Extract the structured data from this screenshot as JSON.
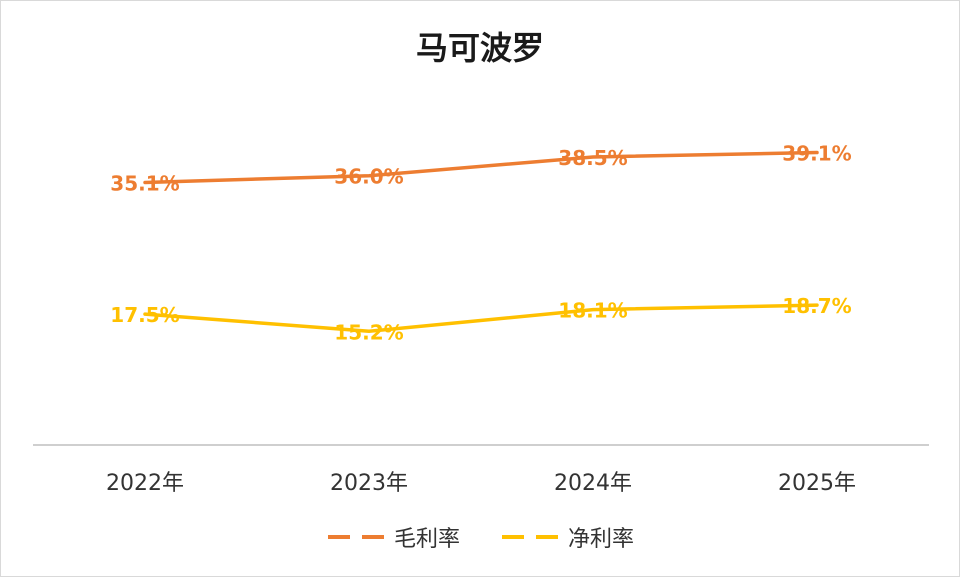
{
  "chart_data": {
    "type": "line",
    "title": "马可波罗",
    "categories": [
      "2022年",
      "2023年",
      "2024年",
      "2025年"
    ],
    "series": [
      {
        "name": "毛利率",
        "values": [
          35.1,
          36.0,
          38.5,
          39.1
        ],
        "labels": [
          "35.1%",
          "36.0%",
          "38.5%",
          "39.1%"
        ],
        "color": "#ED7D31"
      },
      {
        "name": "净利率",
        "values": [
          17.5,
          15.2,
          18.1,
          18.7
        ],
        "labels": [
          "17.5%",
          "15.2%",
          "18.1%",
          "18.7%"
        ],
        "color": "#FFC000"
      }
    ],
    "ylim": [
      0,
      50
    ],
    "grid": false,
    "legend": "bottom",
    "y_axis_shown": false
  },
  "colors": {
    "axis": "#bfbfbf",
    "tick_text": "#333333"
  }
}
